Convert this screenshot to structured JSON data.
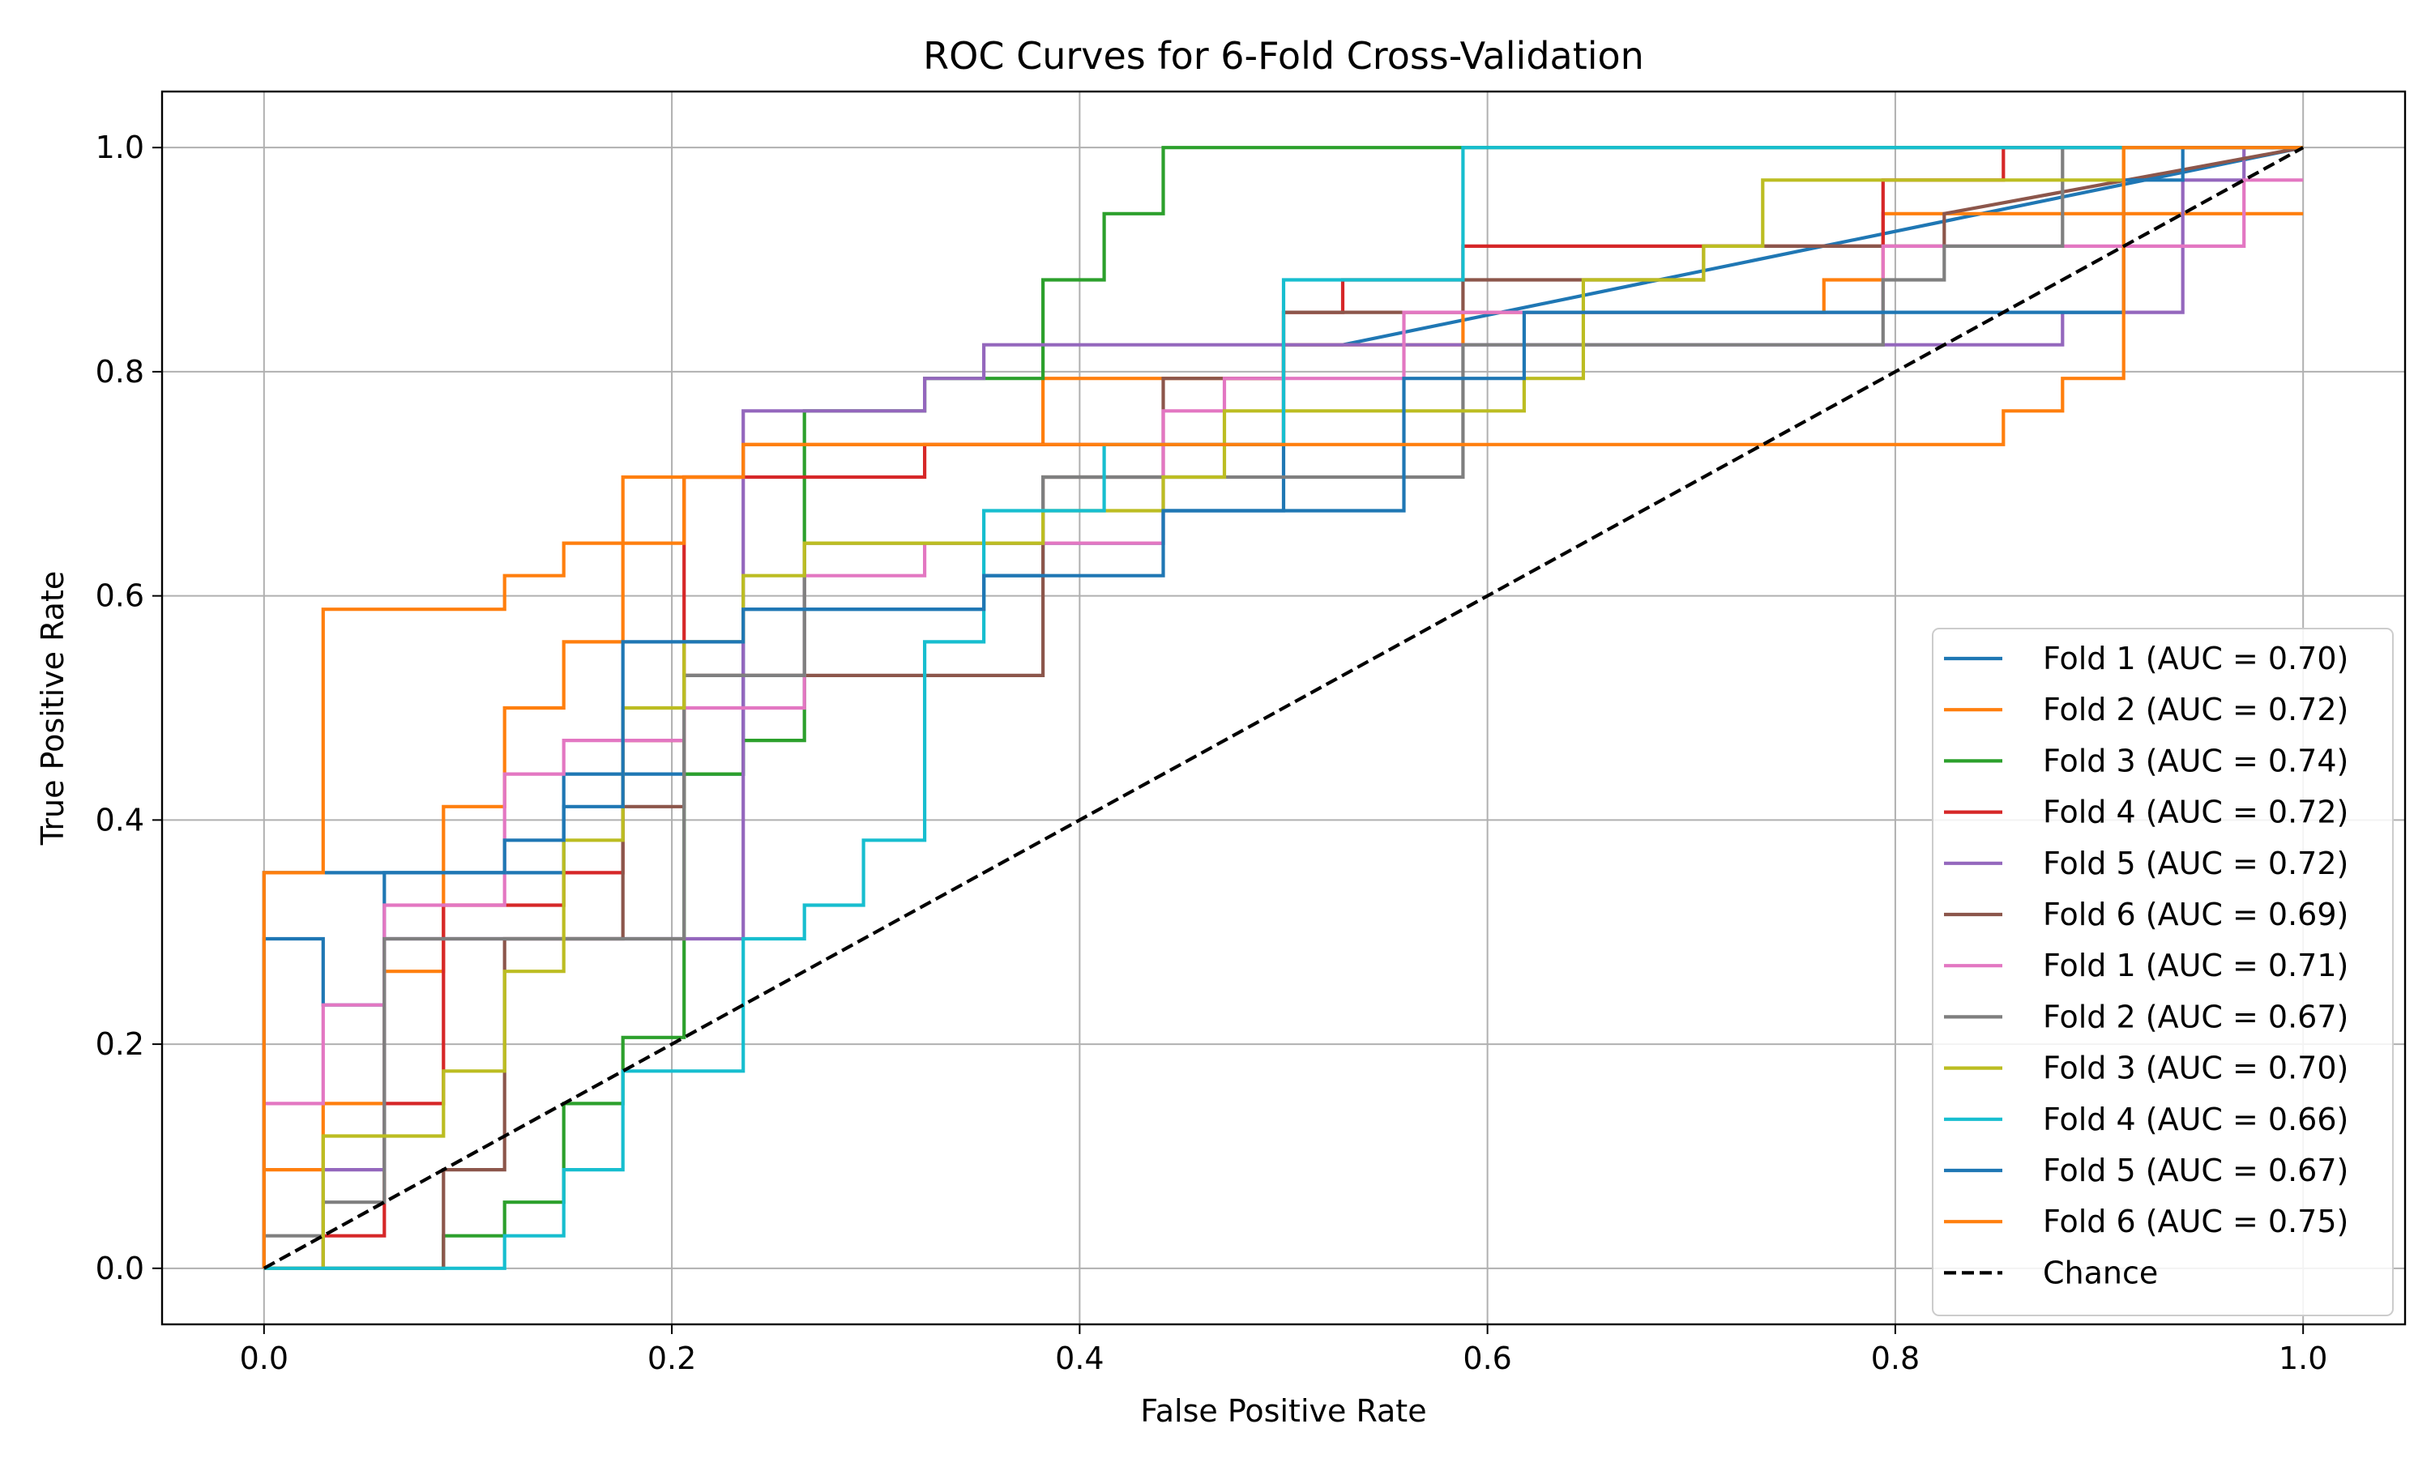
{
  "chart_data": {
    "type": "line",
    "title": "ROC Curves for 6-Fold Cross-Validation",
    "xlabel": "False Positive Rate",
    "ylabel": "True Positive Rate",
    "xlim": [
      -0.05,
      1.05
    ],
    "ylim": [
      -0.05,
      1.05
    ],
    "xticks": [
      "0.0",
      "0.2",
      "0.4",
      "0.6",
      "0.8",
      "1.0"
    ],
    "yticks": [
      "0.0",
      "0.2",
      "0.4",
      "0.6",
      "0.8",
      "1.0"
    ],
    "grid": true,
    "legend_position": "lower-right",
    "series": [
      {
        "name": "Fold 1 (AUC = 0.70)",
        "color": "#1f77b4",
        "dash": "solid",
        "x": [
          0,
          0,
          0.029,
          0.029,
          0.059,
          0.059,
          0.147,
          0.147,
          0.176,
          0.176,
          0.235,
          0.235,
          0.353,
          0.353,
          0.382,
          0.382,
          0.441,
          0.441,
          0.5,
          0.5,
          0.529,
          0.529,
          1
        ],
        "y": [
          0,
          0.294,
          0.294,
          0.235,
          0.235,
          0.353,
          0.353,
          0.441,
          0.441,
          0.441,
          0.441,
          0.588,
          0.588,
          0.618,
          0.618,
          0.647,
          0.647,
          0.676,
          0.676,
          0.824,
          0.824,
          0.824,
          1
        ]
      },
      {
        "name": "Fold 2 (AUC = 0.72)",
        "color": "#ff7f0e",
        "dash": "solid",
        "x": [
          0,
          0,
          0.029,
          0.029,
          0.059,
          0.059,
          0.088,
          0.088,
          0.118,
          0.118,
          0.147,
          0.147,
          0.176,
          0.176,
          0.235,
          0.235,
          0.382,
          0.382,
          0.5,
          0.5,
          0.588,
          0.588,
          0.765,
          0.765,
          0.794,
          0.794,
          1
        ],
        "y": [
          0,
          0.088,
          0.088,
          0.147,
          0.147,
          0.265,
          0.265,
          0.412,
          0.412,
          0.5,
          0.5,
          0.559,
          0.559,
          0.706,
          0.706,
          0.735,
          0.735,
          0.794,
          0.794,
          0.824,
          0.824,
          0.853,
          0.853,
          0.882,
          0.882,
          0.941,
          0.941
        ]
      },
      {
        "name": "Fold 3 (AUC = 0.74)",
        "color": "#2ca02c",
        "dash": "solid",
        "x": [
          0,
          0.088,
          0.088,
          0.118,
          0.118,
          0.147,
          0.147,
          0.176,
          0.176,
          0.206,
          0.206,
          0.235,
          0.235,
          0.265,
          0.265,
          0.324,
          0.324,
          0.382,
          0.382,
          0.412,
          0.412,
          0.441,
          0.441,
          1
        ],
        "y": [
          0,
          0,
          0.029,
          0.029,
          0.059,
          0.059,
          0.147,
          0.147,
          0.206,
          0.206,
          0.441,
          0.441,
          0.471,
          0.471,
          0.765,
          0.765,
          0.794,
          0.794,
          0.882,
          0.882,
          0.941,
          0.941,
          1,
          1
        ]
      },
      {
        "name": "Fold 4 (AUC = 0.72)",
        "color": "#d62728",
        "dash": "solid",
        "x": [
          0,
          0.029,
          0.029,
          0.059,
          0.059,
          0.088,
          0.088,
          0.118,
          0.118,
          0.147,
          0.147,
          0.176,
          0.176,
          0.206,
          0.206,
          0.324,
          0.324,
          0.5,
          0.5,
          0.529,
          0.529,
          0.588,
          0.588,
          0.794,
          0.794,
          0.853,
          0.853,
          1
        ],
        "y": [
          0,
          0,
          0.029,
          0.029,
          0.147,
          0.147,
          0.324,
          0.324,
          0.324,
          0.324,
          0.353,
          0.353,
          0.471,
          0.471,
          0.706,
          0.706,
          0.735,
          0.735,
          0.853,
          0.853,
          0.882,
          0.882,
          0.912,
          0.912,
          0.971,
          0.971,
          1,
          1
        ]
      },
      {
        "name": "Fold 5 (AUC = 0.72)",
        "color": "#9467bd",
        "dash": "solid",
        "x": [
          0,
          0.029,
          0.029,
          0.059,
          0.059,
          0.235,
          0.235,
          0.294,
          0.294,
          0.324,
          0.324,
          0.353,
          0.353,
          0.882,
          0.882,
          0.941,
          0.941,
          0.971,
          0.971,
          1
        ],
        "y": [
          0,
          0,
          0.088,
          0.088,
          0.294,
          0.294,
          0.765,
          0.765,
          0.765,
          0.765,
          0.794,
          0.794,
          0.824,
          0.824,
          0.853,
          0.853,
          0.971,
          0.971,
          1,
          1
        ]
      },
      {
        "name": "Fold 6 (AUC = 0.69)",
        "color": "#8c564b",
        "dash": "solid",
        "x": [
          0,
          0.088,
          0.088,
          0.118,
          0.118,
          0.176,
          0.176,
          0.206,
          0.206,
          0.382,
          0.382,
          0.441,
          0.441,
          0.5,
          0.5,
          0.588,
          0.588,
          0.706,
          0.706,
          0.765,
          0.765,
          0.824,
          0.824,
          1
        ],
        "y": [
          0,
          0,
          0.088,
          0.088,
          0.294,
          0.294,
          0.412,
          0.412,
          0.529,
          0.529,
          0.706,
          0.706,
          0.794,
          0.794,
          0.853,
          0.853,
          0.882,
          0.882,
          0.912,
          0.912,
          0.912,
          0.912,
          0.941,
          1
        ]
      },
      {
        "name": "Fold 1 (AUC = 0.71)",
        "color": "#e377c2",
        "dash": "solid",
        "x": [
          0,
          0,
          0.029,
          0.029,
          0.059,
          0.059,
          0.118,
          0.118,
          0.147,
          0.147,
          0.206,
          0.206,
          0.265,
          0.265,
          0.324,
          0.324,
          0.441,
          0.441,
          0.471,
          0.471,
          0.559,
          0.559,
          0.794,
          0.794,
          0.971,
          0.971,
          1
        ],
        "y": [
          0,
          0.147,
          0.147,
          0.235,
          0.235,
          0.324,
          0.324,
          0.441,
          0.441,
          0.471,
          0.471,
          0.5,
          0.5,
          0.618,
          0.618,
          0.647,
          0.647,
          0.765,
          0.765,
          0.794,
          0.794,
          0.853,
          0.853,
          0.912,
          0.912,
          0.971,
          0.971
        ]
      },
      {
        "name": "Fold 2 (AUC = 0.67)",
        "color": "#7f7f7f",
        "dash": "solid",
        "x": [
          0,
          0,
          0.029,
          0.029,
          0.059,
          0.059,
          0.206,
          0.206,
          0.235,
          0.235,
          0.265,
          0.265,
          0.382,
          0.382,
          0.588,
          0.588,
          0.794,
          0.794,
          0.824,
          0.824,
          0.882,
          0.882,
          1
        ],
        "y": [
          0,
          0.029,
          0.029,
          0.059,
          0.059,
          0.294,
          0.294,
          0.529,
          0.529,
          0.529,
          0.529,
          0.647,
          0.647,
          0.706,
          0.706,
          0.824,
          0.824,
          0.882,
          0.882,
          0.912,
          0.912,
          1,
          1
        ]
      },
      {
        "name": "Fold 3 (AUC = 0.70)",
        "color": "#bcbd22",
        "dash": "solid",
        "x": [
          0,
          0.029,
          0.029,
          0.088,
          0.088,
          0.118,
          0.118,
          0.147,
          0.147,
          0.176,
          0.176,
          0.206,
          0.206,
          0.235,
          0.235,
          0.265,
          0.265,
          0.382,
          0.382,
          0.441,
          0.441,
          0.471,
          0.471,
          0.618,
          0.618,
          0.647,
          0.647,
          0.706,
          0.706,
          0.735,
          0.735,
          0.912,
          0.912,
          1
        ],
        "y": [
          0,
          0,
          0.118,
          0.118,
          0.176,
          0.176,
          0.265,
          0.265,
          0.382,
          0.382,
          0.5,
          0.5,
          0.559,
          0.559,
          0.618,
          0.618,
          0.647,
          0.647,
          0.676,
          0.676,
          0.706,
          0.706,
          0.765,
          0.765,
          0.794,
          0.794,
          0.882,
          0.882,
          0.912,
          0.912,
          0.971,
          0.971,
          1,
          1
        ]
      },
      {
        "name": "Fold 4 (AUC = 0.66)",
        "color": "#17becf",
        "dash": "solid",
        "x": [
          0,
          0.118,
          0.118,
          0.147,
          0.147,
          0.176,
          0.176,
          0.235,
          0.235,
          0.265,
          0.265,
          0.294,
          0.294,
          0.324,
          0.324,
          0.353,
          0.353,
          0.412,
          0.412,
          0.5,
          0.5,
          0.588,
          0.588,
          1
        ],
        "y": [
          0,
          0,
          0.029,
          0.029,
          0.088,
          0.088,
          0.176,
          0.176,
          0.294,
          0.294,
          0.324,
          0.324,
          0.382,
          0.382,
          0.559,
          0.559,
          0.676,
          0.676,
          0.735,
          0.735,
          0.882,
          0.882,
          1,
          1
        ]
      },
      {
        "name": "Fold 5 (AUC = 0.67)",
        "color": "#1f77b4",
        "dash": "solid",
        "x": [
          0,
          0,
          0.059,
          0.059,
          0.118,
          0.118,
          0.147,
          0.147,
          0.176,
          0.176,
          0.235,
          0.235,
          0.353,
          0.353,
          0.441,
          0.441,
          0.559,
          0.559,
          0.618,
          0.618,
          0.765,
          0.765,
          0.912,
          0.912,
          0.941,
          0.941,
          1
        ],
        "y": [
          0,
          0.353,
          0.353,
          0.353,
          0.353,
          0.382,
          0.382,
          0.412,
          0.412,
          0.559,
          0.559,
          0.588,
          0.588,
          0.618,
          0.618,
          0.676,
          0.676,
          0.794,
          0.794,
          0.853,
          0.853,
          0.853,
          0.853,
          0.971,
          0.971,
          1,
          1
        ]
      },
      {
        "name": "Fold 6 (AUC = 0.75)",
        "color": "#ff7f0e",
        "dash": "solid",
        "x": [
          0,
          0,
          0.029,
          0.029,
          0.118,
          0.118,
          0.147,
          0.147,
          0.176,
          0.176,
          0.206,
          0.206,
          0.235,
          0.235,
          0.588,
          0.588,
          0.853,
          0.853,
          0.882,
          0.882,
          0.912,
          0.912,
          0.971,
          0.971,
          1
        ],
        "y": [
          0,
          0.353,
          0.353,
          0.588,
          0.588,
          0.618,
          0.618,
          0.647,
          0.647,
          0.647,
          0.647,
          0.706,
          0.706,
          0.735,
          0.735,
          0.735,
          0.735,
          0.765,
          0.765,
          0.794,
          0.794,
          1,
          1,
          1,
          1
        ]
      },
      {
        "name": "Chance",
        "color": "#000000",
        "dash": "dashed",
        "x": [
          0,
          1
        ],
        "y": [
          0,
          1
        ]
      }
    ]
  }
}
